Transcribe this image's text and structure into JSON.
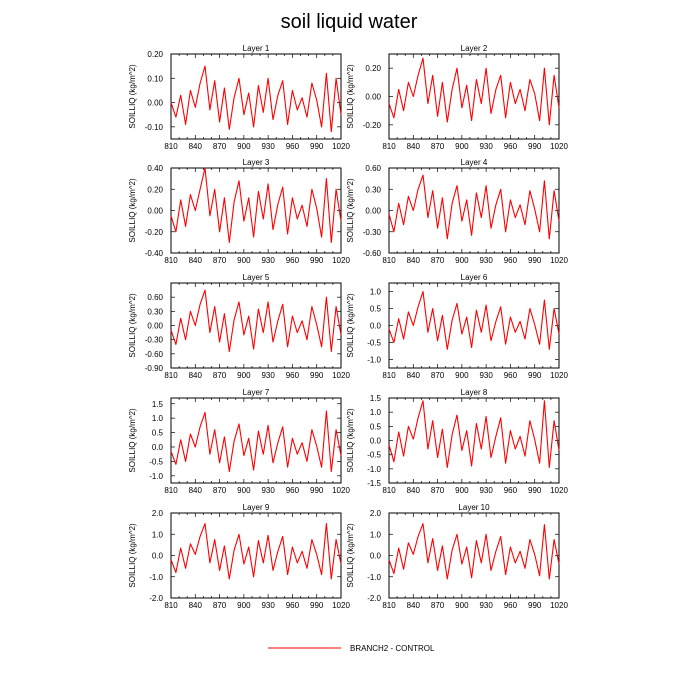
{
  "title": "soil liquid water",
  "legend": {
    "label": "BRANCH2 - CONTROL",
    "color": "#ff0000"
  },
  "chart_data": [
    {
      "type": "line",
      "title": "Layer 1",
      "ylabel": "SOILLIQ  (kg/m^2)",
      "xlim": [
        810,
        1020
      ],
      "ylim": [
        -0.15,
        0.2
      ],
      "xticks": [
        810,
        840,
        870,
        900,
        930,
        960,
        990,
        1020
      ],
      "yticks": [
        "-0.10",
        "0.00",
        "0.10",
        "0.20"
      ],
      "series": [
        {
          "color": "#ff0000",
          "x": [
            810,
            816,
            822,
            828,
            834,
            840,
            846,
            852,
            858,
            864,
            870,
            876,
            882,
            888,
            894,
            900,
            906,
            912,
            918,
            924,
            930,
            936,
            942,
            948,
            954,
            960,
            966,
            972,
            978,
            984,
            990,
            996,
            1002,
            1008,
            1014,
            1020
          ],
          "y": [
            0.0,
            -0.06,
            0.03,
            -0.09,
            0.05,
            -0.02,
            0.08,
            0.15,
            -0.03,
            0.09,
            -0.08,
            0.06,
            -0.11,
            0.02,
            0.1,
            -0.05,
            0.04,
            -0.1,
            0.07,
            -0.04,
            0.1,
            -0.07,
            0.03,
            0.09,
            -0.09,
            0.05,
            -0.03,
            0.02,
            -0.06,
            0.08,
            0.01,
            -0.1,
            0.12,
            -0.12,
            0.1,
            -0.05
          ]
        }
      ]
    },
    {
      "type": "line",
      "title": "Layer 2",
      "ylabel": "SOILLIQ  (kg/m^2)",
      "xlim": [
        810,
        1020
      ],
      "ylim": [
        -0.3,
        0.3
      ],
      "xticks": [
        810,
        840,
        870,
        900,
        930,
        960,
        990,
        1020
      ],
      "yticks": [
        "-0.20",
        "0.00",
        "0.20"
      ],
      "series": [
        {
          "color": "#ff0000",
          "x": [
            810,
            816,
            822,
            828,
            834,
            840,
            846,
            852,
            858,
            864,
            870,
            876,
            882,
            888,
            894,
            900,
            906,
            912,
            918,
            924,
            930,
            936,
            942,
            948,
            954,
            960,
            966,
            972,
            978,
            984,
            990,
            996,
            1002,
            1008,
            1014,
            1020
          ],
          "y": [
            -0.05,
            -0.15,
            0.05,
            -0.1,
            0.1,
            0.0,
            0.15,
            0.27,
            -0.05,
            0.15,
            -0.14,
            0.1,
            -0.18,
            0.05,
            0.2,
            -0.08,
            0.08,
            -0.17,
            0.12,
            -0.05,
            0.2,
            -0.12,
            0.05,
            0.15,
            -0.15,
            0.1,
            -0.05,
            0.05,
            -0.1,
            0.12,
            0.02,
            -0.17,
            0.2,
            -0.2,
            0.15,
            -0.08
          ]
        }
      ]
    },
    {
      "type": "line",
      "title": "Layer 3",
      "ylabel": "SOILLIQ  (kg/m^2)",
      "xlim": [
        810,
        1020
      ],
      "ylim": [
        -0.4,
        0.4
      ],
      "xticks": [
        810,
        840,
        870,
        900,
        930,
        960,
        990,
        1020
      ],
      "yticks": [
        "-0.40",
        "-0.20",
        "0.00",
        "0.20",
        "0.40"
      ],
      "series": [
        {
          "color": "#ff0000",
          "x": [
            810,
            816,
            822,
            828,
            834,
            840,
            846,
            852,
            858,
            864,
            870,
            876,
            882,
            888,
            894,
            900,
            906,
            912,
            918,
            924,
            930,
            936,
            942,
            948,
            954,
            960,
            966,
            972,
            978,
            984,
            990,
            996,
            1002,
            1008,
            1014,
            1020
          ],
          "y": [
            -0.05,
            -0.2,
            0.1,
            -0.15,
            0.15,
            0.0,
            0.2,
            0.4,
            -0.05,
            0.2,
            -0.2,
            0.12,
            -0.3,
            0.08,
            0.28,
            -0.1,
            0.12,
            -0.25,
            0.18,
            -0.08,
            0.25,
            -0.18,
            0.06,
            0.22,
            -0.22,
            0.12,
            -0.08,
            0.05,
            -0.15,
            0.2,
            0.02,
            -0.25,
            0.3,
            -0.3,
            0.2,
            -0.1
          ]
        }
      ]
    },
    {
      "type": "line",
      "title": "Layer 4",
      "ylabel": "SOILLIQ  (kg/m^2)",
      "xlim": [
        810,
        1020
      ],
      "ylim": [
        -0.6,
        0.6
      ],
      "xticks": [
        810,
        840,
        870,
        900,
        930,
        960,
        990,
        1020
      ],
      "yticks": [
        "-0.60",
        "-0.30",
        "0.00",
        "0.30",
        "0.60"
      ],
      "series": [
        {
          "color": "#ff0000",
          "x": [
            810,
            816,
            822,
            828,
            834,
            840,
            846,
            852,
            858,
            864,
            870,
            876,
            882,
            888,
            894,
            900,
            906,
            912,
            918,
            924,
            930,
            936,
            942,
            948,
            954,
            960,
            966,
            972,
            978,
            984,
            990,
            996,
            1002,
            1008,
            1014,
            1020
          ],
          "y": [
            -0.05,
            -0.3,
            0.1,
            -0.2,
            0.2,
            0.0,
            0.3,
            0.5,
            -0.1,
            0.28,
            -0.25,
            0.18,
            -0.4,
            0.1,
            0.35,
            -0.15,
            0.15,
            -0.35,
            0.25,
            -0.1,
            0.35,
            -0.25,
            0.08,
            0.3,
            -0.3,
            0.15,
            -0.1,
            0.08,
            -0.2,
            0.28,
            0.02,
            -0.3,
            0.42,
            -0.4,
            0.28,
            -0.15
          ]
        }
      ]
    },
    {
      "type": "line",
      "title": "Layer 5",
      "ylabel": "SOILLIQ  (kg/m^2)",
      "xlim": [
        810,
        1020
      ],
      "ylim": [
        -0.9,
        0.9
      ],
      "xticks": [
        810,
        840,
        870,
        900,
        930,
        960,
        990,
        1020
      ],
      "yticks": [
        "-0.90",
        "-0.60",
        "-0.30",
        "0.00",
        "0.30",
        "0.60"
      ],
      "series": [
        {
          "color": "#ff0000",
          "x": [
            810,
            816,
            822,
            828,
            834,
            840,
            846,
            852,
            858,
            864,
            870,
            876,
            882,
            888,
            894,
            900,
            906,
            912,
            918,
            924,
            930,
            936,
            942,
            948,
            954,
            960,
            966,
            972,
            978,
            984,
            990,
            996,
            1002,
            1008,
            1014,
            1020
          ],
          "y": [
            -0.1,
            -0.4,
            0.15,
            -0.3,
            0.3,
            0.0,
            0.45,
            0.75,
            -0.15,
            0.4,
            -0.35,
            0.25,
            -0.55,
            0.12,
            0.5,
            -0.2,
            0.2,
            -0.5,
            0.35,
            -0.15,
            0.5,
            -0.35,
            0.1,
            0.45,
            -0.45,
            0.2,
            -0.15,
            0.1,
            -0.3,
            0.4,
            0.02,
            -0.45,
            0.6,
            -0.55,
            0.4,
            -0.2
          ]
        }
      ]
    },
    {
      "type": "line",
      "title": "Layer 6",
      "ylabel": "SOILLIQ  (kg/m^2)",
      "xlim": [
        810,
        1020
      ],
      "ylim": [
        -1.25,
        1.25
      ],
      "xticks": [
        810,
        840,
        870,
        900,
        930,
        960,
        990,
        1020
      ],
      "yticks": [
        "-1.0",
        "-0.5",
        "0.0",
        "0.5",
        "1.0"
      ],
      "series": [
        {
          "color": "#ff0000",
          "x": [
            810,
            816,
            822,
            828,
            834,
            840,
            846,
            852,
            858,
            864,
            870,
            876,
            882,
            888,
            894,
            900,
            906,
            912,
            918,
            924,
            930,
            936,
            942,
            948,
            954,
            960,
            966,
            972,
            978,
            984,
            990,
            996,
            1002,
            1008,
            1014,
            1020
          ],
          "y": [
            -0.1,
            -0.5,
            0.2,
            -0.4,
            0.4,
            0.0,
            0.55,
            1.0,
            -0.2,
            0.5,
            -0.45,
            0.3,
            -0.7,
            0.15,
            0.65,
            -0.25,
            0.25,
            -0.65,
            0.45,
            -0.2,
            0.6,
            -0.45,
            0.12,
            0.55,
            -0.55,
            0.25,
            -0.2,
            0.12,
            -0.4,
            0.5,
            0.03,
            -0.55,
            0.75,
            -0.7,
            0.5,
            -0.25
          ]
        }
      ]
    },
    {
      "type": "line",
      "title": "Layer 7",
      "ylabel": "SOILLIQ  (kg/m^2)",
      "xlim": [
        810,
        1020
      ],
      "ylim": [
        -1.25,
        1.7
      ],
      "xticks": [
        810,
        840,
        870,
        900,
        930,
        960,
        990,
        1020
      ],
      "yticks": [
        "-1.0",
        "-0.5",
        "0.0",
        "0.5",
        "1.0",
        "1.5"
      ],
      "series": [
        {
          "color": "#ff0000",
          "x": [
            810,
            816,
            822,
            828,
            834,
            840,
            846,
            852,
            858,
            864,
            870,
            876,
            882,
            888,
            894,
            900,
            906,
            912,
            918,
            924,
            930,
            936,
            942,
            948,
            954,
            960,
            966,
            972,
            978,
            984,
            990,
            996,
            1002,
            1008,
            1014,
            1020
          ],
          "y": [
            -0.15,
            -0.6,
            0.25,
            -0.5,
            0.45,
            0.0,
            0.7,
            1.2,
            -0.25,
            0.6,
            -0.55,
            0.35,
            -0.85,
            0.2,
            0.8,
            -0.3,
            0.3,
            -0.8,
            0.55,
            -0.25,
            0.75,
            -0.55,
            0.15,
            0.7,
            -0.7,
            0.3,
            -0.25,
            0.15,
            -0.5,
            0.6,
            0.03,
            -0.7,
            1.25,
            -0.85,
            0.6,
            -0.3
          ]
        }
      ]
    },
    {
      "type": "line",
      "title": "Layer 8",
      "ylabel": "SOILLIQ  (kg/m^2)",
      "xlim": [
        810,
        1020
      ],
      "ylim": [
        -1.5,
        1.5
      ],
      "xticks": [
        810,
        840,
        870,
        900,
        930,
        960,
        990,
        1020
      ],
      "yticks": [
        "-1.5",
        "-1.0",
        "-0.5",
        "0.0",
        "0.5",
        "1.0",
        "1.5"
      ],
      "series": [
        {
          "color": "#ff0000",
          "x": [
            810,
            816,
            822,
            828,
            834,
            840,
            846,
            852,
            858,
            864,
            870,
            876,
            882,
            888,
            894,
            900,
            906,
            912,
            918,
            924,
            930,
            936,
            942,
            948,
            954,
            960,
            966,
            972,
            978,
            984,
            990,
            996,
            1002,
            1008,
            1014,
            1020
          ],
          "y": [
            -0.15,
            -0.75,
            0.3,
            -0.55,
            0.5,
            0.05,
            0.8,
            1.4,
            -0.3,
            0.7,
            -0.6,
            0.4,
            -0.95,
            0.2,
            0.9,
            -0.35,
            0.35,
            -0.9,
            0.6,
            -0.3,
            0.85,
            -0.6,
            0.15,
            0.8,
            -0.8,
            0.35,
            -0.3,
            0.15,
            -0.55,
            0.7,
            0.03,
            -0.8,
            1.4,
            -0.95,
            0.7,
            -0.35
          ]
        }
      ]
    },
    {
      "type": "line",
      "title": "Layer 9",
      "ylabel": "SOILLIQ  (kg/m^2)",
      "xlim": [
        810,
        1020
      ],
      "ylim": [
        -2.0,
        2.0
      ],
      "xticks": [
        810,
        840,
        870,
        900,
        930,
        960,
        990,
        1020
      ],
      "yticks": [
        "-2.0",
        "-1.0",
        "0.0",
        "1.0",
        "2.0"
      ],
      "series": [
        {
          "color": "#ff0000",
          "x": [
            810,
            816,
            822,
            828,
            834,
            840,
            846,
            852,
            858,
            864,
            870,
            876,
            882,
            888,
            894,
            900,
            906,
            912,
            918,
            924,
            930,
            936,
            942,
            948,
            954,
            960,
            966,
            972,
            978,
            984,
            990,
            996,
            1002,
            1008,
            1014,
            1020
          ],
          "y": [
            -0.2,
            -0.8,
            0.35,
            -0.6,
            0.55,
            0.05,
            0.9,
            1.5,
            -0.35,
            0.75,
            -0.7,
            0.45,
            -1.1,
            0.25,
            1.0,
            -0.4,
            0.4,
            -1.0,
            0.7,
            -0.35,
            0.95,
            -0.7,
            0.2,
            0.9,
            -0.9,
            0.4,
            -0.35,
            0.2,
            -0.6,
            0.75,
            0.05,
            -0.9,
            1.5,
            -1.1,
            0.75,
            -0.4
          ]
        }
      ]
    },
    {
      "type": "line",
      "title": "Layer 10",
      "ylabel": "SOILLIQ  (kg/m^2)",
      "xlim": [
        810,
        1020
      ],
      "ylim": [
        -2.0,
        2.0
      ],
      "xticks": [
        810,
        840,
        870,
        900,
        930,
        960,
        990,
        1020
      ],
      "yticks": [
        "-2.0",
        "-1.0",
        "0.0",
        "1.0",
        "2.0"
      ],
      "series": [
        {
          "color": "#ff0000",
          "x": [
            810,
            816,
            822,
            828,
            834,
            840,
            846,
            852,
            858,
            864,
            870,
            876,
            882,
            888,
            894,
            900,
            906,
            912,
            918,
            924,
            930,
            936,
            942,
            948,
            954,
            960,
            966,
            972,
            978,
            984,
            990,
            996,
            1002,
            1008,
            1014,
            1020
          ],
          "y": [
            -0.2,
            -0.85,
            0.35,
            -0.65,
            0.6,
            0.05,
            0.9,
            1.5,
            -0.35,
            0.8,
            -0.7,
            0.45,
            -1.1,
            0.25,
            1.0,
            -0.4,
            0.4,
            -1.05,
            0.7,
            -0.35,
            1.0,
            -0.7,
            0.2,
            0.9,
            -0.9,
            0.4,
            -0.35,
            0.2,
            -0.6,
            0.75,
            0.05,
            -0.95,
            1.45,
            -1.1,
            0.75,
            -0.4
          ]
        }
      ]
    }
  ]
}
